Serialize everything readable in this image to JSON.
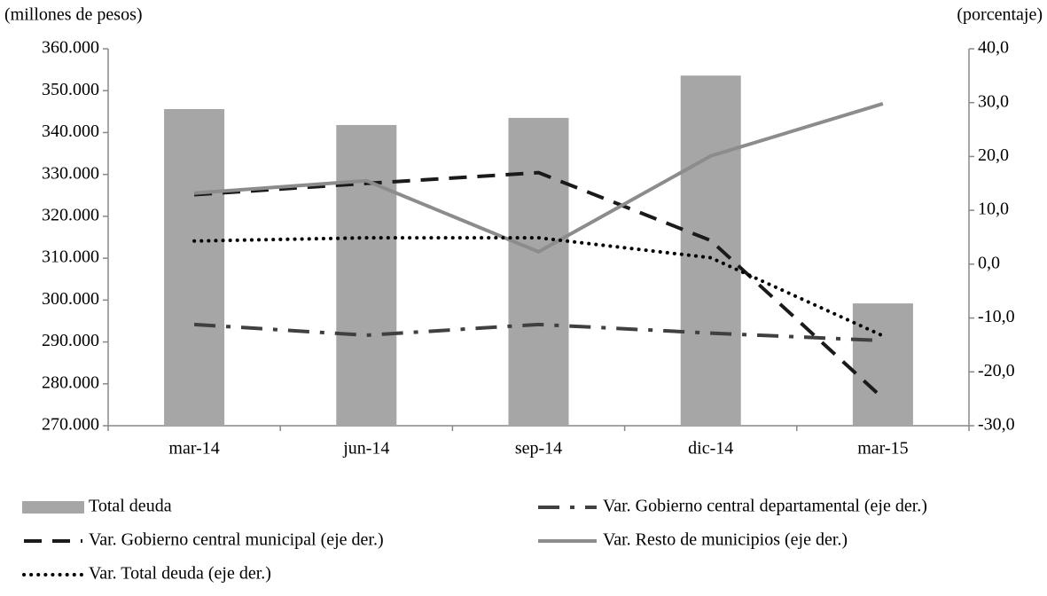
{
  "chart_data": {
    "type": "bar",
    "y_label": "(millones de pesos)",
    "y2_label": "(porcentaje)",
    "categories": [
      "mar-14",
      "jun-14",
      "sep-14",
      "dic-14",
      "mar-15"
    ],
    "ylim": [
      270000,
      360000
    ],
    "yticks": [
      {
        "value": 270000,
        "label": "270.000"
      },
      {
        "value": 280000,
        "label": "280.000"
      },
      {
        "value": 290000,
        "label": "290.000"
      },
      {
        "value": 300000,
        "label": "300.000"
      },
      {
        "value": 310000,
        "label": "310.000"
      },
      {
        "value": 320000,
        "label": "320.000"
      },
      {
        "value": 330000,
        "label": "330.000"
      },
      {
        "value": 340000,
        "label": "340.000"
      },
      {
        "value": 350000,
        "label": "350.000"
      },
      {
        "value": 360000,
        "label": "360.000"
      }
    ],
    "y2lim": [
      -30,
      40
    ],
    "y2ticks": [
      {
        "value": -30,
        "label": "-30,0"
      },
      {
        "value": -20,
        "label": "-20,0"
      },
      {
        "value": -10,
        "label": "-10,0"
      },
      {
        "value": 0,
        "label": "0,0"
      },
      {
        "value": 10,
        "label": "10,0"
      },
      {
        "value": 20,
        "label": "20,0"
      },
      {
        "value": 30,
        "label": "30,0"
      },
      {
        "value": 40,
        "label": "40,0"
      }
    ],
    "series": [
      {
        "name": "Total deuda",
        "type": "bar",
        "color": "#a6a6a6",
        "values": [
          345600,
          341800,
          343500,
          353600,
          299200
        ]
      },
      {
        "name": "Var. Gobierno central departamental (eje der.)",
        "type": "line",
        "axis": "y2",
        "style": "dashdot",
        "color": "#404040",
        "values": [
          -11.2,
          -13.2,
          -11.2,
          -12.8,
          -14.2
        ]
      },
      {
        "name": "Var. Gobierno central municipal (eje der.)",
        "type": "line",
        "axis": "y2",
        "style": "dashed",
        "color": "#1a1a1a",
        "values": [
          12.9,
          15.0,
          17.0,
          4.4,
          -24.9
        ]
      },
      {
        "name": "Var. Resto de municipios (eje der.)",
        "type": "line",
        "axis": "y2",
        "style": "solid",
        "color": "#8c8c8c",
        "values": [
          13.2,
          15.5,
          2.3,
          20.1,
          29.8
        ]
      },
      {
        "name": "Var. Total deuda (eje der.)",
        "type": "line",
        "axis": "y2",
        "style": "dotted",
        "color": "#000000",
        "values": [
          4.3,
          4.9,
          4.9,
          1.2,
          -13.3
        ]
      }
    ]
  }
}
